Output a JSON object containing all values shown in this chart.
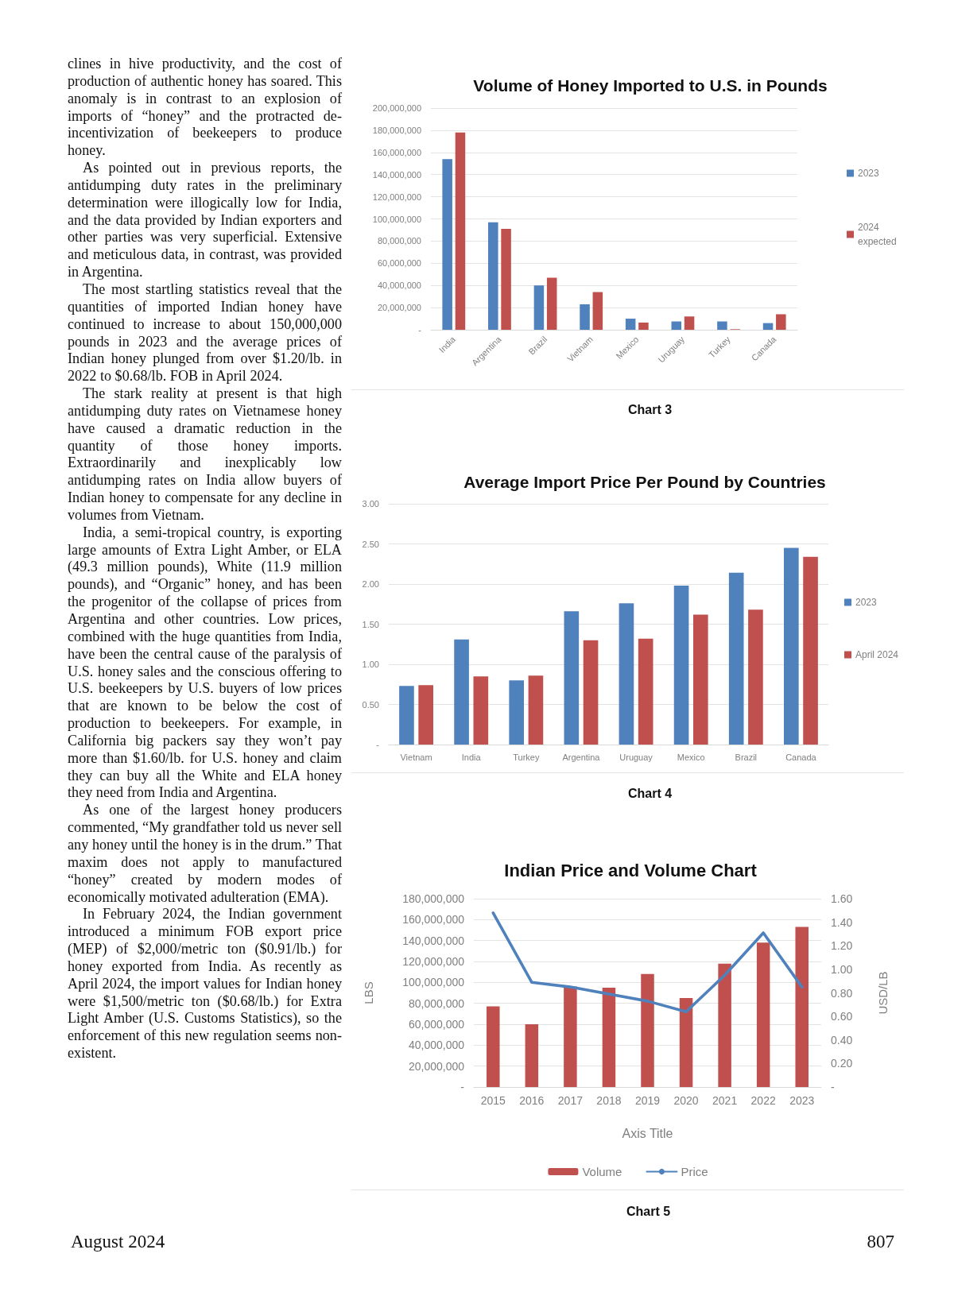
{
  "chart_data": [
    {
      "type": "other",
      "annotations": [
        "clines in hive productivity, and the cost of production of authentic honey has soared. This anomaly is in contrast to an explosion of imports of “honey” and the protracted de-incentivization of beekeepers to produce honey.",
        "As pointed out in previous reports, the antidumping duty rates in the preliminary determination were illogically low for India, and the data provided by Indian exporters and other parties was very superficial. Extensive and meticulous data, in contrast, was provided in Argentina.",
        "The most startling statistics reveal that the quantities of imported Indian honey have continued to increase to about 150,000,000 pounds in 2023 and the average prices of Indian honey plunged from over $1.20/lb. in 2022 to $0.68/lb. FOB in April 2024.",
        "The stark reality at present is that high antidumping duty rates on Vietnamese honey have caused a dramatic reduction in the quantity of those honey imports. Extraordinarily and inexplicably low antidumping rates on India allow buyers of Indian honey to compensate for any decline in volumes from Vietnam.",
        "India, a semi-tropical country, is exporting large amounts of Extra Light Amber, or ELA (49.3 million pounds), White (11.9 million pounds), and “Organic” honey, and has been the progenitor of the collapse of prices from Argentina and other countries. Low prices, combined with the huge quantities from India, have been the central cause of the paralysis of U.S. honey sales and the conscious offering to U.S. beekeepers by U.S. buyers of low prices that are known to be below the cost of production to beekeepers. For example, in California big packers say they won’t pay more than $1.60/lb. for U.S. honey and claim they can buy all the White and ELA honey they need from India and Argentina.",
        "As one of the largest honey producers commented, “My grandfather told us never sell any honey until the honey is in the drum.” That maxim does not apply to manufactured “honey” created by modern modes of economically motivated adulteration (EMA).",
        "In February 2024, the Indian government introduced a minimum FOB export price (MEP) of $2,000/metric ton ($0.91/lb.) for honey exported from India. As recently as April 2024, the import values for Indian honey were $1,500/metric ton ($0.68/lb.) for Extra Light Amber (U.S. Customs Statistics), so the enforcement of this new regulation seems non-existent."
      ]
    },
    {
      "type": "bar",
      "title": "Volume of Honey Imported to U.S. in Pounds",
      "categories": [
        "India",
        "Argentina",
        "Brazil",
        "Vietnam",
        "Mexico",
        "Uruguay",
        "Turkey",
        "Canada"
      ],
      "series": [
        {
          "name": "2023",
          "color": "#4f81bd",
          "values": [
            154000000,
            97000000,
            40000000,
            23000000,
            10000000,
            7500000,
            7500000,
            6000000
          ]
        },
        {
          "name": "2024 expected",
          "color": "#c0504d",
          "values": [
            178000000,
            91000000,
            47000000,
            34000000,
            6500000,
            12000000,
            500000,
            14000000
          ]
        }
      ],
      "ylim": [
        0,
        200000000
      ],
      "yticks": [
        {
          "value": 0,
          "label": "-"
        },
        {
          "value": 20000000,
          "label": "20,000,000"
        },
        {
          "value": 40000000,
          "label": "40,000,000"
        },
        {
          "value": 60000000,
          "label": "60,000,000"
        },
        {
          "value": 80000000,
          "label": "80,000,000"
        },
        {
          "value": 100000000,
          "label": "100,000,000"
        },
        {
          "value": 120000000,
          "label": "120,000,000"
        },
        {
          "value": 140000000,
          "label": "140,000,000"
        },
        {
          "value": 160000000,
          "label": "160,000,000"
        },
        {
          "value": 180000000,
          "label": "180,000,000"
        },
        {
          "value": 200000000,
          "label": "200,000,000"
        }
      ],
      "grid": "y",
      "legend": "right",
      "annotations": [
        "Chart 3"
      ]
    },
    {
      "type": "bar",
      "title": "Average Import Price Per Pound by Countries",
      "categories": [
        "Vietnam",
        "India",
        "Turkey",
        "Argentina",
        "Uruguay",
        "Mexico",
        "Brazil",
        "Canada"
      ],
      "series": [
        {
          "name": "2023",
          "color": "#4f81bd",
          "values": [
            0.73,
            1.31,
            0.8,
            1.66,
            1.76,
            1.98,
            2.14,
            2.45
          ]
        },
        {
          "name": "April 2024",
          "color": "#c0504d",
          "values": [
            0.74,
            0.85,
            0.86,
            1.3,
            1.32,
            1.62,
            1.68,
            2.34
          ]
        }
      ],
      "ylim": [
        0,
        3
      ],
      "yticks": [
        {
          "value": 0,
          "label": "-"
        },
        {
          "value": 0.5,
          "label": "0.50"
        },
        {
          "value": 1,
          "label": "1.00"
        },
        {
          "value": 1.5,
          "label": "1.50"
        },
        {
          "value": 2,
          "label": "2.00"
        },
        {
          "value": 2.5,
          "label": "2.50"
        },
        {
          "value": 3,
          "label": "3.00"
        }
      ],
      "grid": "y",
      "legend": "right",
      "annotations": [
        "Chart 4"
      ]
    },
    {
      "type": "bar",
      "title": "Indian Price and Volume Chart",
      "categories": [
        "2015",
        "2016",
        "2017",
        "2018",
        "2019",
        "2020",
        "2021",
        "2022",
        "2023"
      ],
      "series": [
        {
          "name": "Volume",
          "type": "bar",
          "color": "#c0504d",
          "values": [
            77000000,
            60000000,
            96000000,
            95000000,
            108000000,
            85000000,
            118000000,
            138000000,
            153000000
          ]
        },
        {
          "name": "Price",
          "type": "line",
          "axis": "y2",
          "color": "#4f81bd",
          "values": [
            1.48,
            0.89,
            0.85,
            0.79,
            0.73,
            0.64,
            0.95,
            1.31,
            0.85
          ]
        }
      ],
      "xlabel": "Axis Title",
      "ylabel": "LBS",
      "y2label": "USD/LB",
      "ylim": [
        0,
        180000000
      ],
      "yticks": [
        {
          "value": 0,
          "label": "-"
        },
        {
          "value": 20000000,
          "label": "20,000,000"
        },
        {
          "value": 40000000,
          "label": "40,000,000"
        },
        {
          "value": 60000000,
          "label": "60,000,000"
        },
        {
          "value": 80000000,
          "label": "80,000,000"
        },
        {
          "value": 100000000,
          "label": "100,000,000"
        },
        {
          "value": 120000000,
          "label": "120,000,000"
        },
        {
          "value": 140000000,
          "label": "140,000,000"
        },
        {
          "value": 160000000,
          "label": "160,000,000"
        },
        {
          "value": 180000000,
          "label": "180,000,000"
        }
      ],
      "y2lim": [
        0,
        1.6
      ],
      "y2ticks": [
        {
          "value": 0,
          "label": "-"
        },
        {
          "value": 0.2,
          "label": "0.20"
        },
        {
          "value": 0.4,
          "label": "0.40"
        },
        {
          "value": 0.6,
          "label": "0.60"
        },
        {
          "value": 0.8,
          "label": "0.80"
        },
        {
          "value": 1,
          "label": "1.00"
        },
        {
          "value": 1.2,
          "label": "1.20"
        },
        {
          "value": 1.4,
          "label": "1.40"
        },
        {
          "value": 1.6,
          "label": "1.60"
        }
      ],
      "grid": "y",
      "legend": "bottom",
      "line_style": "solid",
      "annotations": [
        "Chart 5"
      ]
    },
    {
      "type": "other",
      "annotations": [
        "August 2024",
        "807"
      ]
    }
  ]
}
